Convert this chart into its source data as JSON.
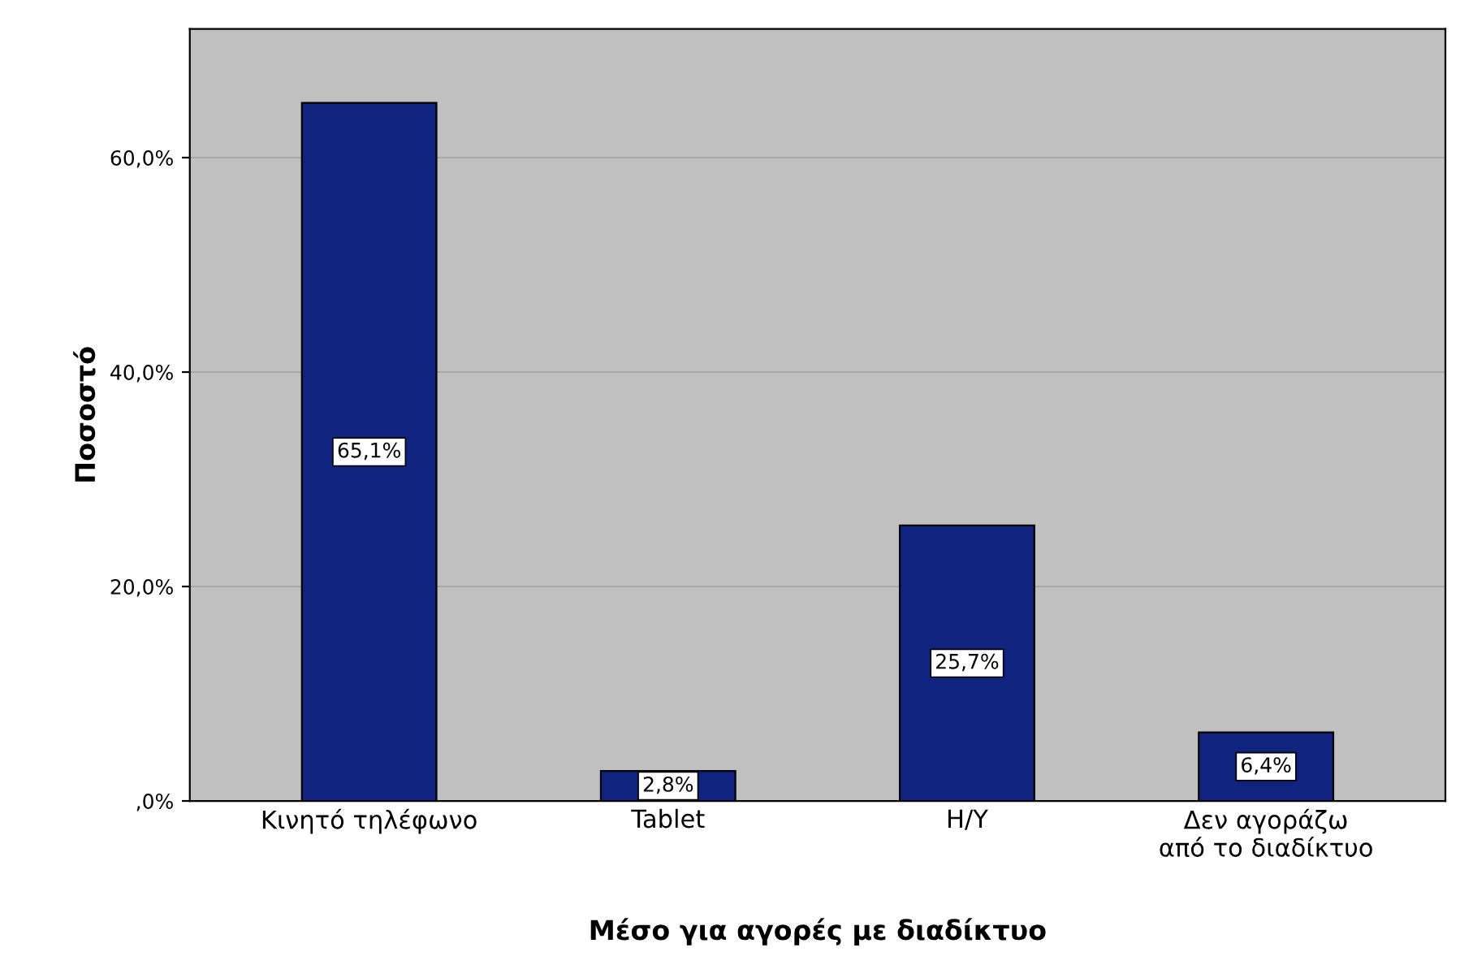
{
  "chart_data": {
    "type": "bar",
    "xlabel": "Μέσο για αγορές με διαδίκτυο",
    "ylabel": "Ποσοστό",
    "categories": [
      "Κινητό τηλέφωνο",
      "Tablet",
      "Η/Υ",
      "Δεν αγοράζω\nαπό το διαδίκτυο"
    ],
    "values": [
      65.1,
      2.8,
      25.7,
      6.4
    ],
    "value_labels": [
      "65,1%",
      "2,8%",
      "25,7%",
      "6,4%"
    ],
    "color": "#0f237f",
    "ylim": [
      0,
      72
    ],
    "yticks": [
      {
        "value": 0,
        "label": ",0%"
      },
      {
        "value": 20,
        "label": "20,0%"
      },
      {
        "value": 40,
        "label": "40,0%"
      },
      {
        "value": 60,
        "label": "60,0%"
      }
    ],
    "grid": "y"
  }
}
